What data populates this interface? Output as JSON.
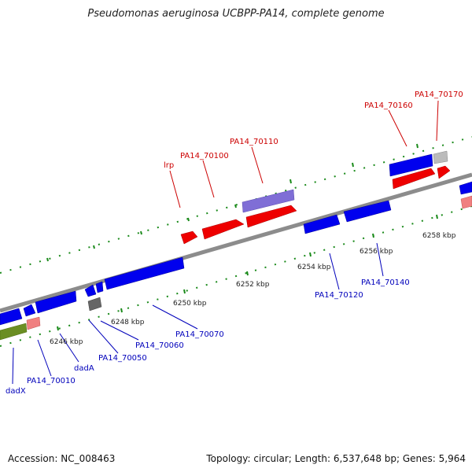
{
  "title": "Pseudomonas aeruginosa UCBPP-PA14, complete genome",
  "footer": {
    "accession": "Accession: NC_008463",
    "summary": "Topology: circular; Length: 6,537,648 bp; Genes: 5,964"
  },
  "colors": {
    "backbone": "#8c8c8c",
    "tick": "#1a8a1a",
    "top_label": "#cc0000",
    "bottom_label": "#0000bb"
  },
  "scale_labels": [
    "6246 kbp",
    "6248 kbp",
    "6250 kbp",
    "6252 kbp",
    "6254 kbp",
    "6256 kbp",
    "6258 kbp"
  ],
  "top_gene_labels": [
    "lrp",
    "PA14_70100",
    "PA14_70110",
    "PA14_70160",
    "PA14_70170"
  ],
  "bottom_gene_labels": [
    "dadX",
    "PA14_70010",
    "dadA",
    "PA14_70050",
    "PA14_70060",
    "PA14_70070",
    "PA14_70120",
    "PA14_70140"
  ]
}
